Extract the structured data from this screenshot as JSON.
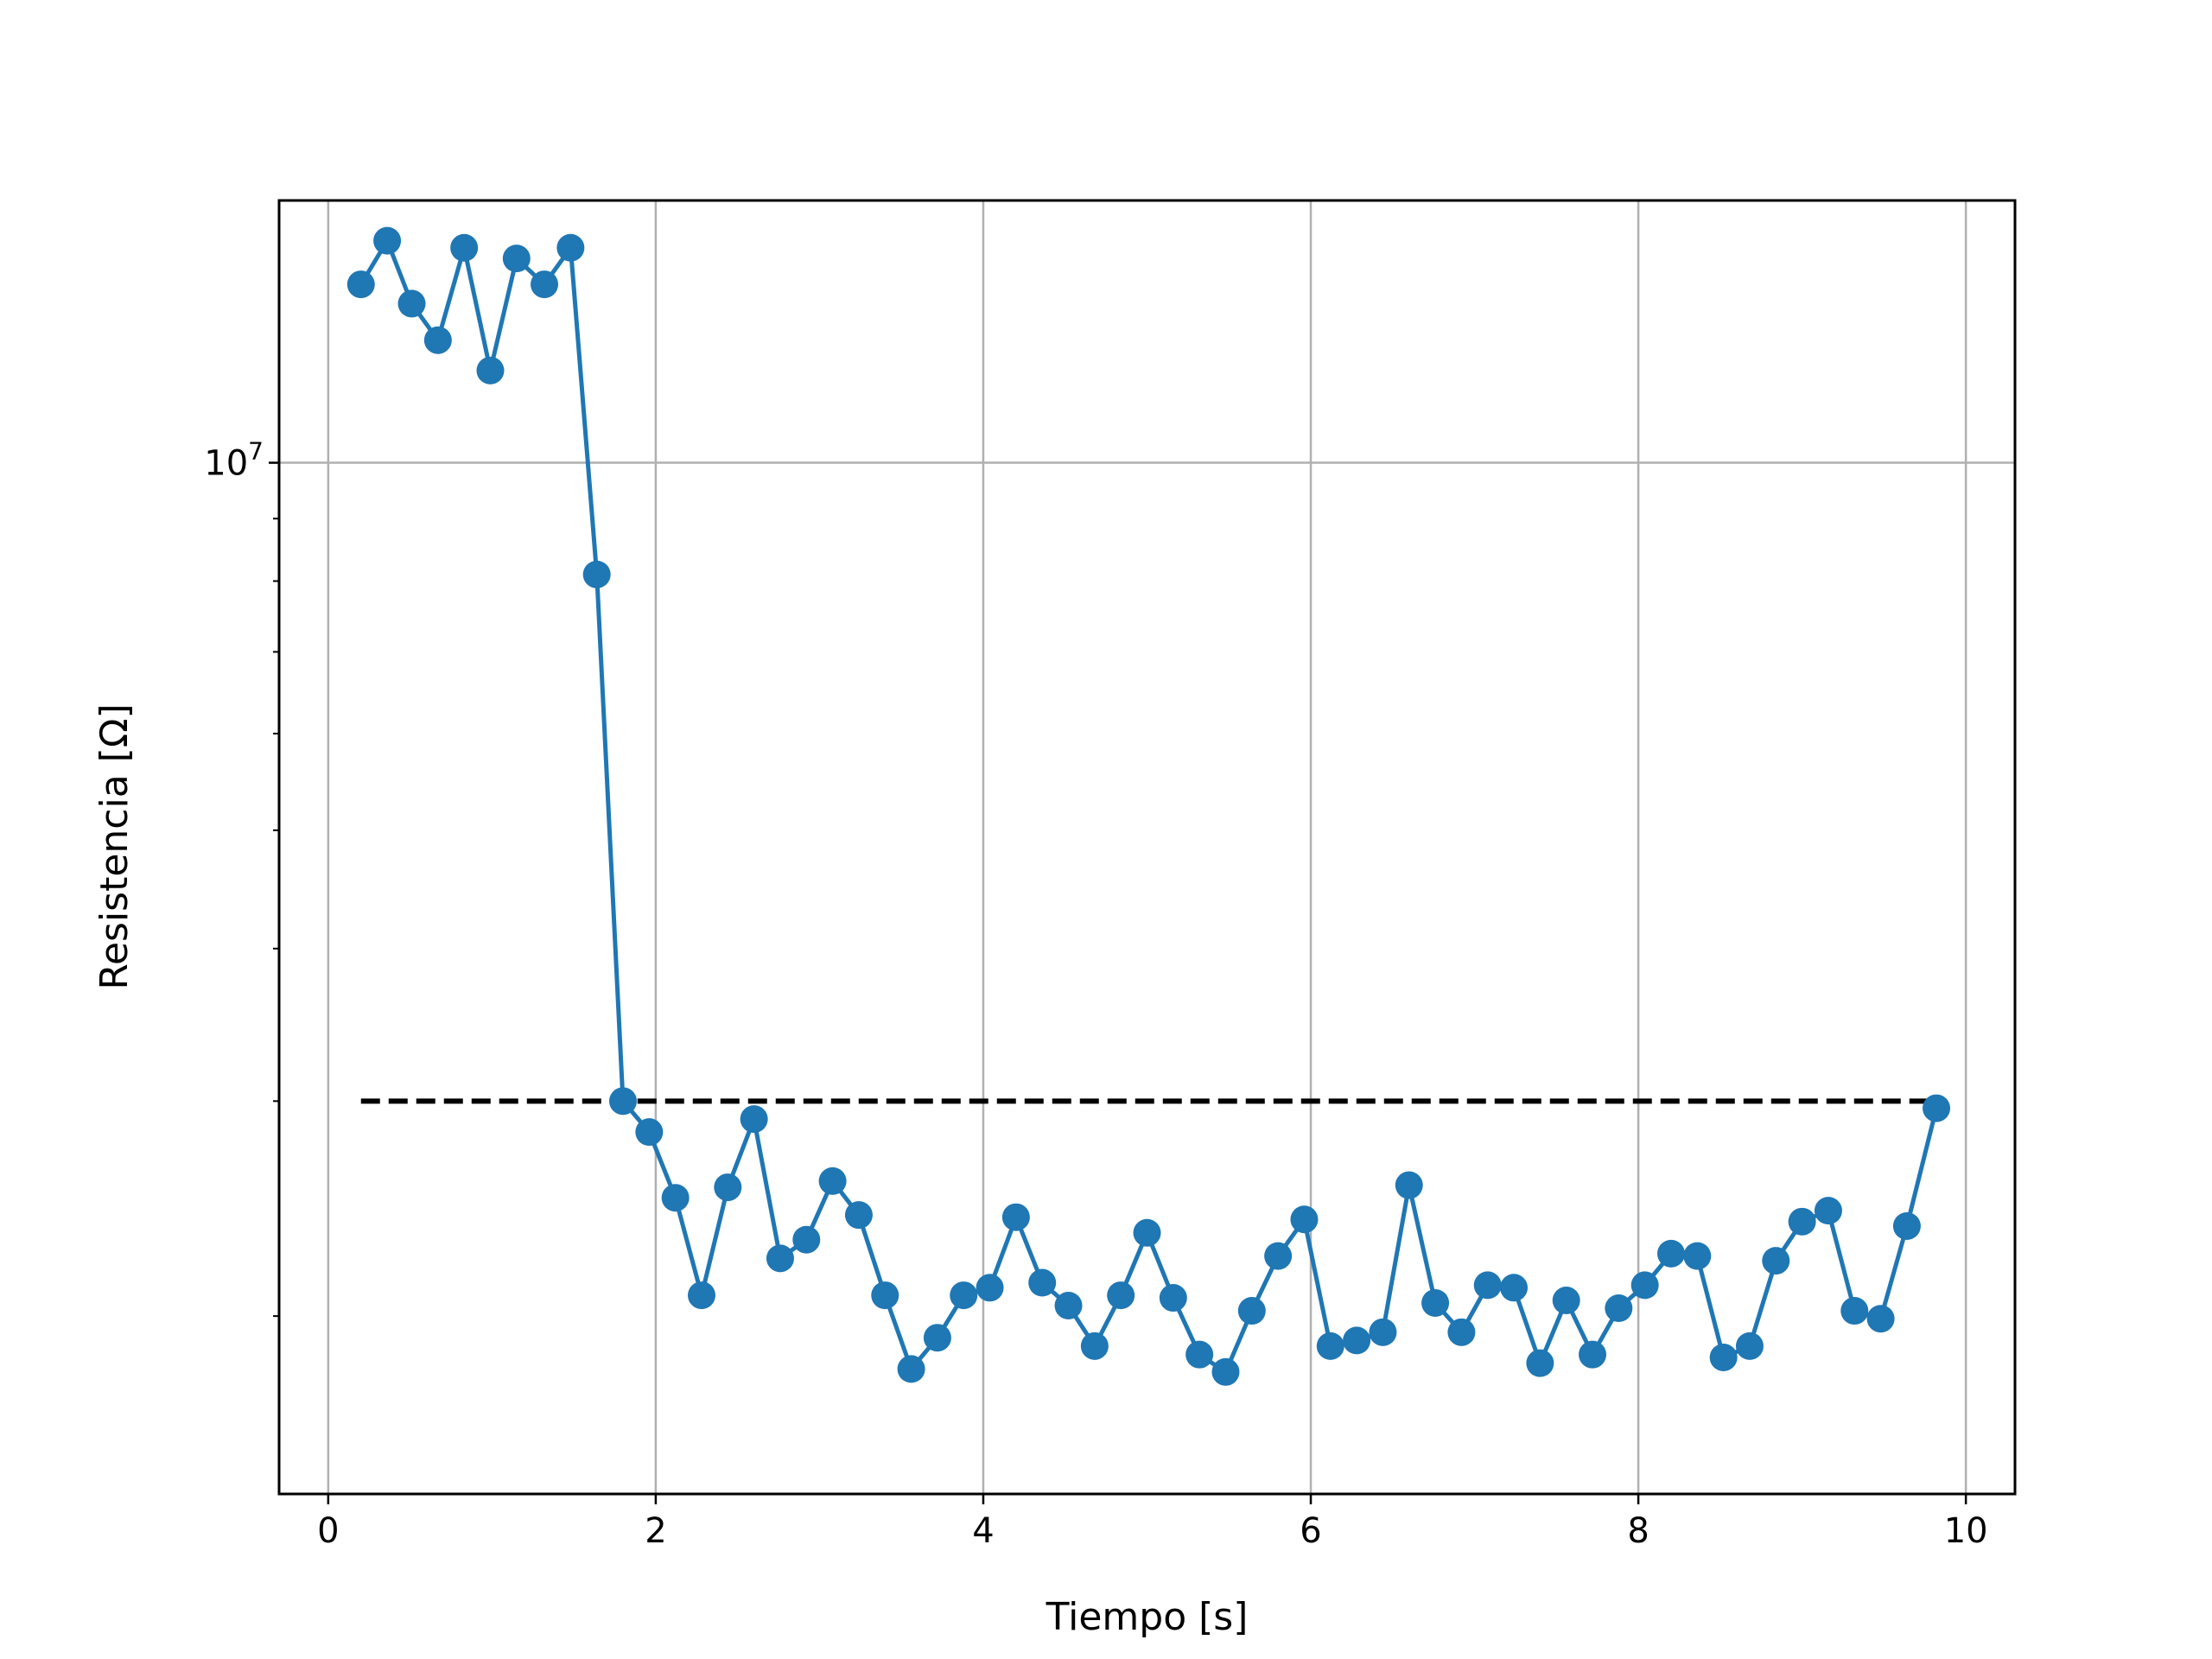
{
  "chart_data": {
    "type": "line",
    "xlabel": "Tiempo [s]",
    "ylabel": "Resistencia [Ω]",
    "xlim": [
      -0.3,
      10.3
    ],
    "ylim": [
      1430000,
      16400000
    ],
    "yscale": "log",
    "grid": true,
    "xticks": [
      {
        "value": 0,
        "label": "0"
      },
      {
        "value": 2,
        "label": "2"
      },
      {
        "value": 4,
        "label": "4"
      },
      {
        "value": 6,
        "label": "6"
      },
      {
        "value": 8,
        "label": "8"
      },
      {
        "value": 10,
        "label": "10"
      }
    ],
    "yticks_major": [
      {
        "value": 10000000,
        "base": "10",
        "exponent": "7"
      }
    ],
    "yticks_minor": [
      2000000,
      3000000,
      4000000,
      5000000,
      6000000,
      7000000,
      8000000,
      9000000
    ],
    "reference_line": {
      "x": [
        0.2,
        9.82
      ],
      "y": 3000000,
      "style": "dashed",
      "color": "#000000"
    },
    "series": [
      {
        "color": "#1f77b4",
        "marker": "circle",
        "x": [
          0.2,
          0.36,
          0.51,
          0.67,
          0.83,
          0.99,
          1.15,
          1.32,
          1.48,
          1.64,
          1.8,
          1.96,
          2.12,
          2.28,
          2.44,
          2.6,
          2.76,
          2.92,
          3.08,
          3.24,
          3.4,
          3.56,
          3.72,
          3.88,
          4.04,
          4.2,
          4.36,
          4.52,
          4.68,
          4.84,
          5.0,
          5.16,
          5.32,
          5.48,
          5.64,
          5.8,
          5.96,
          6.12,
          6.28,
          6.44,
          6.6,
          6.76,
          6.92,
          7.08,
          7.24,
          7.4,
          7.56,
          7.72,
          7.88,
          8.04,
          8.2,
          8.36,
          8.52,
          8.68,
          8.84,
          9.0,
          9.16,
          9.32,
          9.48,
          9.64,
          9.82
        ],
        "y": [
          14000000,
          15200000,
          13500000,
          12600000,
          15000000,
          11900000,
          14700000,
          14000000,
          15000000,
          8100000,
          3000000,
          2830000,
          2500000,
          2080000,
          2550000,
          2900000,
          2230000,
          2310000,
          2580000,
          2420000,
          2080000,
          1810000,
          1920000,
          2080000,
          2110000,
          2410000,
          2130000,
          2040000,
          1890000,
          2080000,
          2340000,
          2070000,
          1860000,
          1800000,
          2020000,
          2240000,
          2400000,
          1890000,
          1910000,
          1940000,
          2560000,
          2050000,
          1940000,
          2120000,
          2110000,
          1830000,
          2060000,
          1860000,
          2030000,
          2120000,
          2250000,
          2240000,
          1850000,
          1890000,
          2220000,
          2390000,
          2440000,
          2020000,
          1990000,
          2370000,
          2960000
        ]
      }
    ]
  }
}
